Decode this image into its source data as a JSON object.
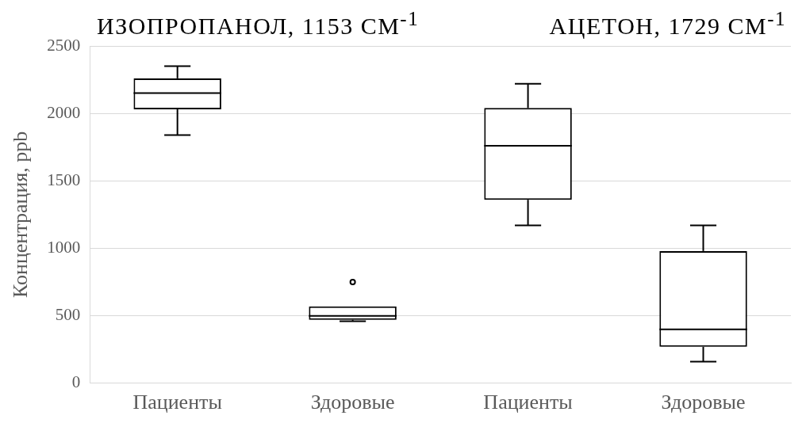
{
  "chart_data": {
    "type": "box",
    "annotations": [
      "ИЗОПРОПАНОЛ, 1153 СМ$^{-1}$",
      "АЦЕТОН, 1729 СМ$^{-1}$"
    ],
    "ylabel": "Концентрация, ppb",
    "categories": [
      "Пациенты",
      "Здоровые",
      "Пациенты",
      "Здоровые"
    ],
    "boxes": [
      {
        "low": 1840,
        "q1": 2030,
        "median": 2150,
        "q3": 2260,
        "high": 2350
      },
      {
        "low": 460,
        "q1": 470,
        "median": 500,
        "q3": 570,
        "high": 570,
        "outliers": [
          750
        ]
      },
      {
        "low": 1170,
        "q1": 1360,
        "median": 1760,
        "q3": 2040,
        "high": 2220
      },
      {
        "low": 160,
        "q1": 270,
        "median": 400,
        "q3": 980,
        "high": 1170
      }
    ],
    "ylim": [
      0,
      2500
    ],
    "yticks": [
      0,
      500,
      1000,
      1500,
      2000,
      2500
    ],
    "grid": "y",
    "legend": false
  }
}
